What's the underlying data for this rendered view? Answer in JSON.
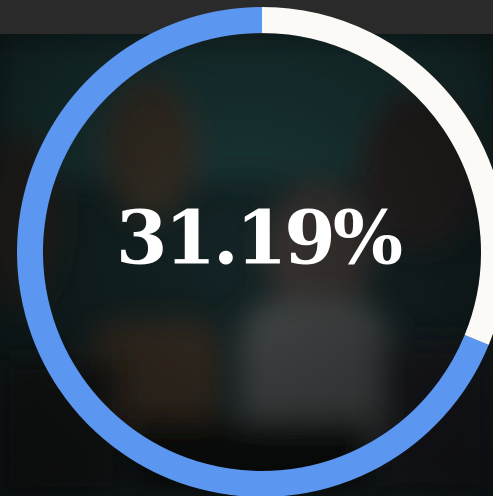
{
  "chart_data": {
    "type": "donut",
    "values": [
      31.19,
      68.81
    ],
    "value_labels": [
      "31.19%",
      null
    ],
    "colors": [
      "#fbfaf7",
      "#5b96f0"
    ]
  }
}
